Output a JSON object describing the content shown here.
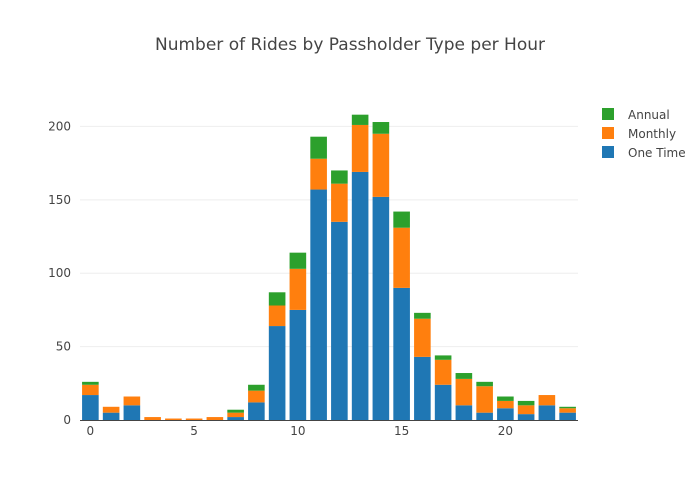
{
  "chart_data": {
    "type": "bar",
    "stacked": true,
    "title": "Number of Rides by Passholder Type per Hour",
    "xlabel": "",
    "ylabel": "",
    "x": [
      0,
      1,
      2,
      3,
      4,
      5,
      6,
      7,
      8,
      9,
      10,
      11,
      12,
      13,
      14,
      15,
      16,
      17,
      18,
      19,
      20,
      21,
      22,
      23
    ],
    "xticks": [
      0,
      5,
      10,
      15,
      20
    ],
    "yticks": [
      0,
      50,
      100,
      150,
      200
    ],
    "xlim": [
      -0.5,
      23.5
    ],
    "ylim": [
      0,
      218
    ],
    "grid": true,
    "legend": "top-right",
    "series": [
      {
        "name": "One Time",
        "color": "#1f77b4",
        "values": [
          17,
          5,
          10,
          0,
          0,
          0,
          0,
          2,
          12,
          64,
          75,
          157,
          135,
          169,
          152,
          90,
          43,
          24,
          10,
          5,
          8,
          4,
          10,
          5
        ]
      },
      {
        "name": "Monthly",
        "color": "#ff7f0e",
        "values": [
          7,
          4,
          6,
          2,
          1,
          1,
          2,
          3,
          8,
          14,
          28,
          21,
          26,
          32,
          43,
          41,
          26,
          17,
          18,
          18,
          5,
          6,
          7,
          3
        ]
      },
      {
        "name": "Annual",
        "color": "#2ca02c",
        "values": [
          2,
          0,
          0,
          0,
          0,
          0,
          0,
          2,
          4,
          9,
          11,
          15,
          9,
          7,
          8,
          11,
          4,
          3,
          4,
          3,
          3,
          3,
          0,
          1
        ]
      }
    ],
    "legend_order": [
      "Annual",
      "Monthly",
      "One Time"
    ]
  }
}
